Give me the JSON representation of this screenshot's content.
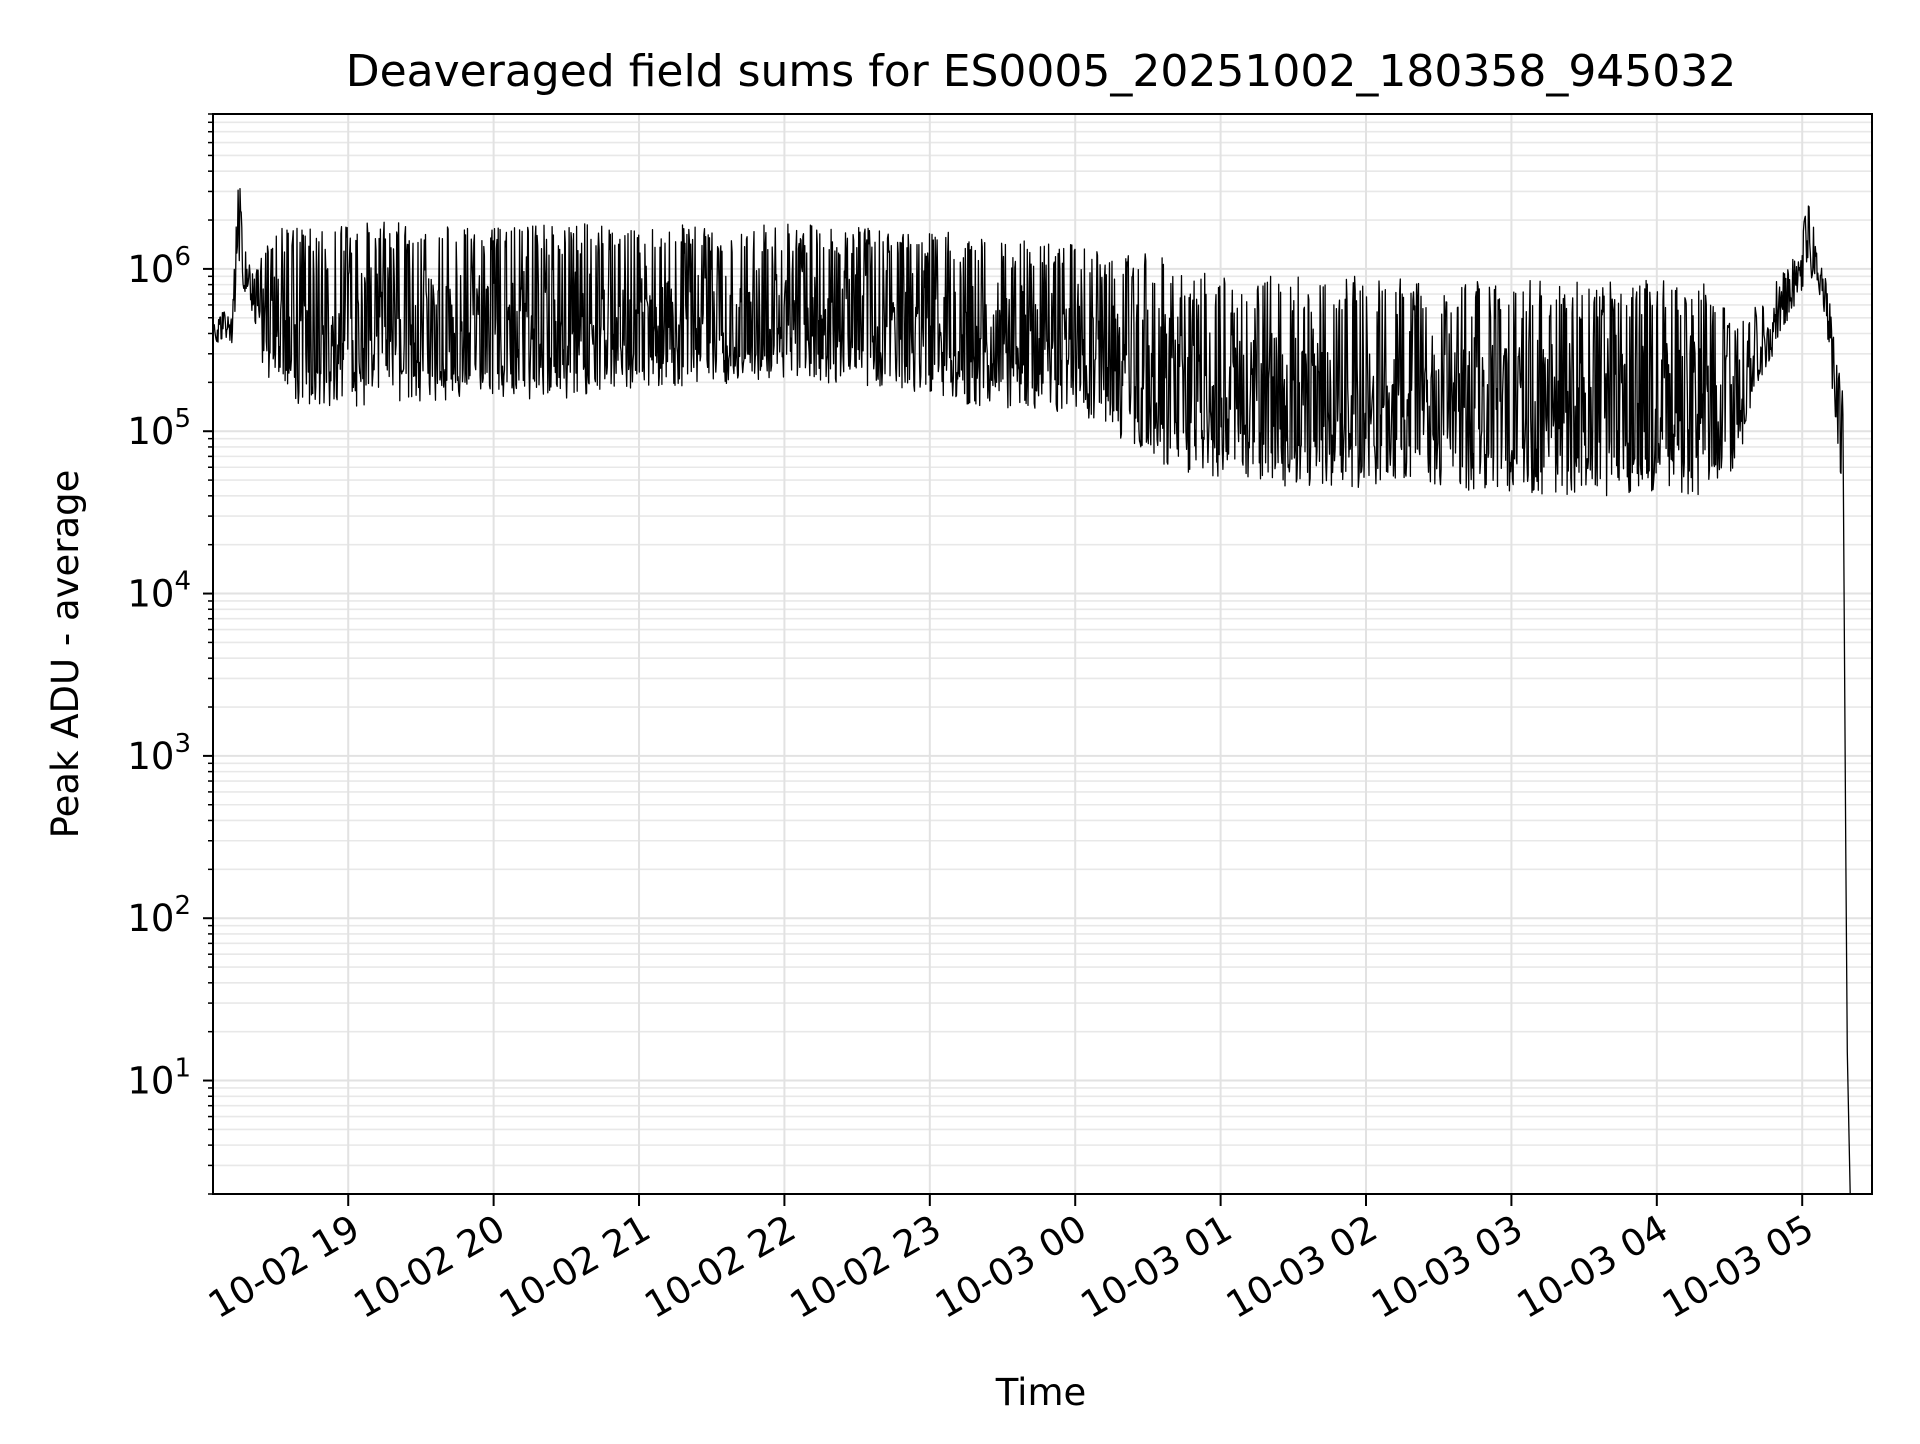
{
  "chart_data": {
    "type": "line",
    "title": "Deaveraged field sums for ES0005_20251002_180358_945032",
    "xlabel": "Time",
    "ylabel": "Peak ADU - average",
    "x_unit": "hours since 10-02 18:00",
    "xlim": [
      0.07,
      11.48
    ],
    "ylim": [
      2,
      9000000
    ],
    "yscale": "log",
    "grid": true,
    "xticks": [
      {
        "value": 1,
        "label": "10-02 19"
      },
      {
        "value": 2,
        "label": "10-02 20"
      },
      {
        "value": 3,
        "label": "10-02 21"
      },
      {
        "value": 4,
        "label": "10-02 22"
      },
      {
        "value": 5,
        "label": "10-02 23"
      },
      {
        "value": 6,
        "label": "10-03 00"
      },
      {
        "value": 7,
        "label": "10-03 01"
      },
      {
        "value": 8,
        "label": "10-03 02"
      },
      {
        "value": 9,
        "label": "10-03 03"
      },
      {
        "value": 10,
        "label": "10-03 04"
      },
      {
        "value": 11,
        "label": "10-03 05"
      }
    ],
    "yticks": [
      {
        "value": 10,
        "base": "10",
        "exp": "1"
      },
      {
        "value": 100,
        "base": "10",
        "exp": "2"
      },
      {
        "value": 1000,
        "base": "10",
        "exp": "3"
      },
      {
        "value": 10000,
        "base": "10",
        "exp": "4"
      },
      {
        "value": 100000,
        "base": "10",
        "exp": "5"
      },
      {
        "value": 1000000,
        "base": "10",
        "exp": "6"
      }
    ],
    "series": [
      {
        "name": "deaveraged field sum",
        "color": "#000000",
        "envelope": {
          "x": [
            0.07,
            0.15,
            0.2,
            0.25,
            0.3,
            0.35,
            0.4,
            0.5,
            0.6,
            0.8,
            1.0,
            1.5,
            2.0,
            2.5,
            3.0,
            3.5,
            4.0,
            4.5,
            5.0,
            5.3,
            5.5,
            6.0,
            6.3,
            6.6,
            6.8,
            7.0,
            7.5,
            8.0,
            8.5,
            9.0,
            9.5,
            10.0,
            10.3,
            10.55,
            10.7,
            10.85,
            10.95,
            11.05,
            11.1,
            11.15,
            11.2,
            11.25,
            11.28
          ],
          "high": [
            500000,
            550000,
            500000,
            4800000,
            1200000,
            900000,
            1500000,
            1800000,
            1900000,
            2000000,
            2000000,
            1900000,
            1800000,
            1900000,
            1900000,
            1900000,
            1900000,
            1800000,
            1800000,
            1600000,
            1500000,
            1500000,
            1300000,
            1200000,
            1000000,
            900000,
            900000,
            900000,
            850000,
            850000,
            850000,
            850000,
            850000,
            500000,
            600000,
            900000,
            1200000,
            2900000,
            1300000,
            1000000,
            600000,
            250000,
            200000
          ],
          "low": [
            350000,
            350000,
            350000,
            800000,
            700000,
            500000,
            250000,
            180000,
            150000,
            140000,
            140000,
            150000,
            150000,
            160000,
            180000,
            190000,
            200000,
            190000,
            170000,
            140000,
            140000,
            130000,
            90000,
            60000,
            55000,
            50000,
            45000,
            45000,
            45000,
            40000,
            40000,
            40000,
            40000,
            60000,
            200000,
            350000,
            600000,
            900000,
            800000,
            500000,
            200000,
            60000,
            40000
          ]
        },
        "tail": {
          "x": [
            11.28,
            11.3,
            11.31,
            11.33
          ],
          "y": [
            40000,
            250,
            15,
            2
          ]
        }
      }
    ]
  }
}
